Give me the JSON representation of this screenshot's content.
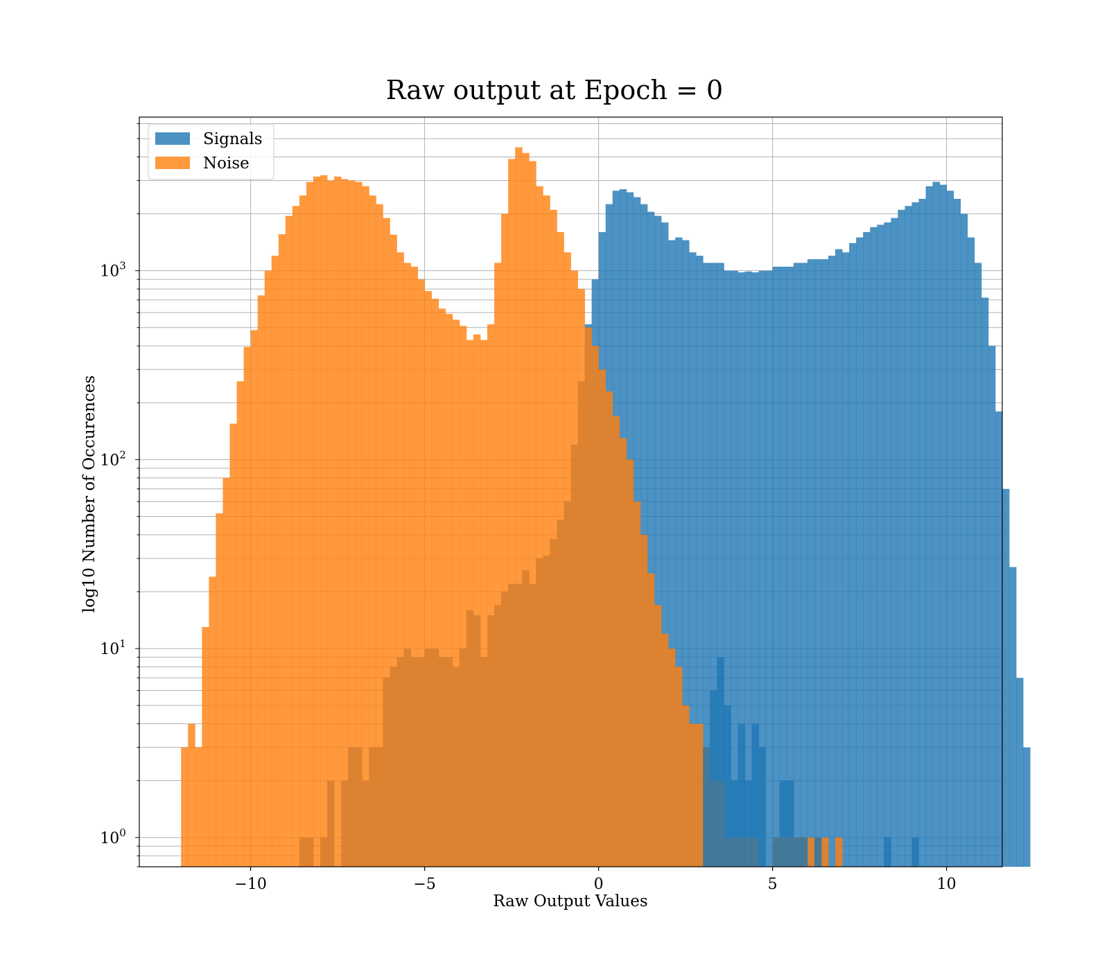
{
  "chart_data": {
    "type": "bar",
    "subtype": "histogram",
    "title": "Raw output at Epoch = 0",
    "xlabel": "Raw Output Values",
    "ylabel": "log10 Number of Occurences",
    "xlim": [
      -13.2,
      11.6
    ],
    "ylim": [
      0.7,
      6500
    ],
    "y_scale": "log",
    "grid": true,
    "legend_position": "top-left",
    "bin_width": 0.2,
    "x_ticks": [
      {
        "value": -10,
        "label": "−10"
      },
      {
        "value": -5,
        "label": "−5"
      },
      {
        "value": 0,
        "label": "0"
      },
      {
        "value": 5,
        "label": "5"
      },
      {
        "value": 10,
        "label": "10"
      }
    ],
    "y_ticks": [
      {
        "value": 1,
        "base": "10",
        "exp": "0"
      },
      {
        "value": 10,
        "base": "10",
        "exp": "1"
      },
      {
        "value": 100,
        "base": "10",
        "exp": "2"
      },
      {
        "value": 1000,
        "base": "10",
        "exp": "3"
      }
    ],
    "series": [
      {
        "name": "Signals",
        "color": "#1f77b4",
        "opacity": 0.8,
        "x_start": -8.6,
        "values": [
          1,
          1,
          0,
          1,
          2,
          0,
          2,
          3,
          3,
          2,
          3,
          3,
          7,
          8,
          9,
          10,
          9,
          9,
          10,
          10,
          9,
          9,
          8,
          10,
          16,
          15,
          9,
          15,
          17,
          20,
          22,
          22,
          26,
          22,
          30,
          31,
          38,
          48,
          60,
          120,
          260,
          520,
          900,
          1600,
          2250,
          2650,
          2700,
          2600,
          2450,
          2250,
          2050,
          1950,
          1800,
          1450,
          1500,
          1450,
          1250,
          1200,
          1100,
          1100,
          1100,
          1000,
          1000,
          980,
          990,
          980,
          1000,
          1000,
          1050,
          1050,
          1050,
          1100,
          1100,
          1150,
          1150,
          1150,
          1200,
          1300,
          1250,
          1400,
          1500,
          1600,
          1700,
          1750,
          1800,
          1900,
          2100,
          2200,
          2300,
          2400,
          2800,
          2950,
          2850,
          2650,
          2400,
          2000,
          1500,
          1100,
          720,
          400,
          180,
          70,
          27,
          7,
          3
        ],
        "overlay": {
          "x_start": 3.0,
          "values": [
            3,
            6,
            9,
            5,
            2,
            4,
            2,
            4,
            3,
            0,
            1,
            2,
            2,
            1,
            1,
            0,
            1,
            0,
            0,
            0,
            0,
            0,
            0,
            0,
            0,
            0,
            1,
            0,
            0,
            0,
            1,
            0,
            0,
            0,
            0,
            0,
            0,
            0,
            0,
            0,
            0,
            0,
            0,
            0,
            0,
            0,
            0,
            0,
            0,
            0,
            0,
            0,
            0,
            0,
            0,
            0,
            0,
            0,
            0,
            0,
            0,
            0,
            0,
            0,
            0,
            0,
            0,
            0
          ]
        }
      },
      {
        "name": "Noise",
        "color": "#ff7f0e",
        "opacity": 0.8,
        "x_start": -12.0,
        "values": [
          3,
          4,
          3,
          13,
          24,
          52,
          80,
          155,
          260,
          395,
          485,
          740,
          1000,
          1200,
          1560,
          1950,
          2200,
          2500,
          2950,
          3150,
          3200,
          3000,
          3150,
          3050,
          3000,
          2950,
          2800,
          2500,
          2250,
          1900,
          1550,
          1250,
          1100,
          1050,
          900,
          780,
          710,
          630,
          590,
          550,
          510,
          430,
          460,
          430,
          520,
          1100,
          2000,
          3900,
          4500,
          4200,
          3800,
          2800,
          2500,
          2100,
          1600,
          1250,
          1000,
          800,
          500,
          400,
          300,
          230,
          170,
          130,
          100,
          60,
          40,
          25,
          17,
          12,
          10,
          8,
          5,
          4,
          4,
          3,
          2,
          2,
          1,
          1,
          1,
          1,
          1,
          0,
          0,
          1,
          1,
          1,
          1,
          1,
          1,
          1,
          1,
          0,
          1
        ]
      }
    ]
  }
}
